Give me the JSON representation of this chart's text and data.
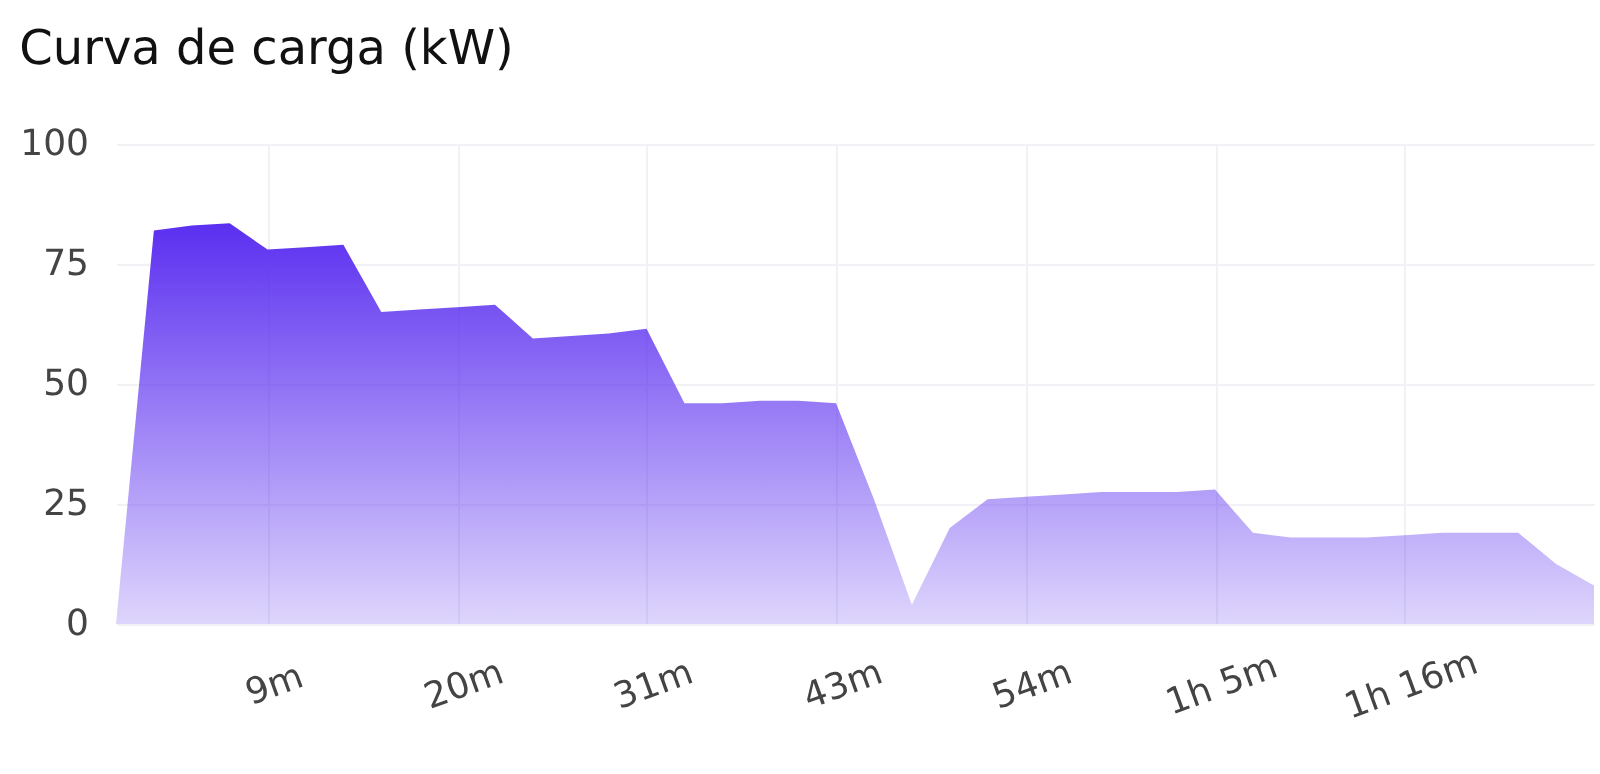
{
  "chart_data": {
    "type": "area",
    "title": "Curva de carga (kW)",
    "categories": [
      null,
      null,
      null,
      null,
      "9m",
      null,
      null,
      null,
      null,
      "20m",
      null,
      null,
      null,
      null,
      "31m",
      null,
      null,
      null,
      null,
      "43m",
      null,
      null,
      null,
      null,
      "54m",
      null,
      null,
      null,
      null,
      "1h 5m",
      null,
      null,
      null,
      null,
      "1h 16m",
      null,
      null,
      null,
      null,
      null
    ],
    "series": [
      {
        "color": "#5b2ff0",
        "values": [
          0,
          82,
          83,
          83.5,
          78,
          78.5,
          79,
          65,
          65.5,
          66,
          66.5,
          59.5,
          60,
          60.5,
          61.5,
          46,
          46,
          46.5,
          46.5,
          46,
          26,
          4,
          20,
          26,
          26.5,
          27,
          27.5,
          27.5,
          27.5,
          28,
          19,
          18,
          18,
          18,
          18.5,
          19,
          19,
          19,
          12.5,
          8
        ]
      }
    ],
    "ylim": [
      0,
      100
    ],
    "yticks": [
      0,
      25,
      50,
      75,
      100
    ],
    "grid": true
  }
}
